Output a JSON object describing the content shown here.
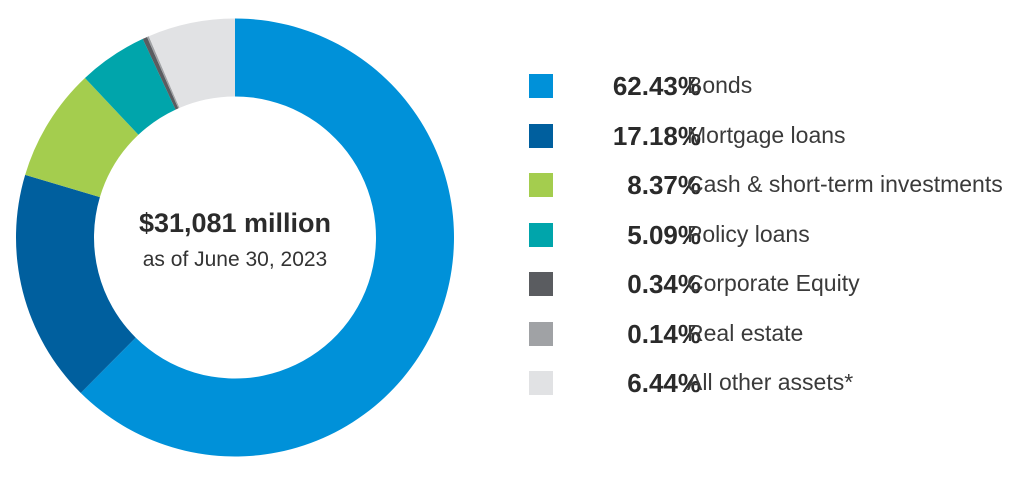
{
  "chart_data": {
    "type": "pie",
    "donut": true,
    "center_text": {
      "total": "$31,081 million",
      "as_of": "as of June 30, 2023"
    },
    "legend_position": "right",
    "slices": [
      {
        "label": "Bonds",
        "value": 62.43,
        "display": "62.43%",
        "color": "#0091d9"
      },
      {
        "label": "Mortgage loans",
        "value": 17.18,
        "display": "17.18%",
        "color": "#005f9e"
      },
      {
        "label": "Cash & short-term investments",
        "value": 8.37,
        "display": "8.37%",
        "color": "#a4cd4e"
      },
      {
        "label": "Policy loans",
        "value": 5.09,
        "display": "5.09%",
        "color": "#00a5ab"
      },
      {
        "label": "Corporate Equity",
        "value": 0.34,
        "display": "0.34%",
        "color": "#5a5c60"
      },
      {
        "label": "Real estate",
        "value": 0.14,
        "display": "0.14%",
        "color": "#a0a2a5"
      },
      {
        "label": "All other assets*",
        "value": 6.44,
        "display": "6.44%",
        "color": "#e1e2e4"
      }
    ]
  }
}
